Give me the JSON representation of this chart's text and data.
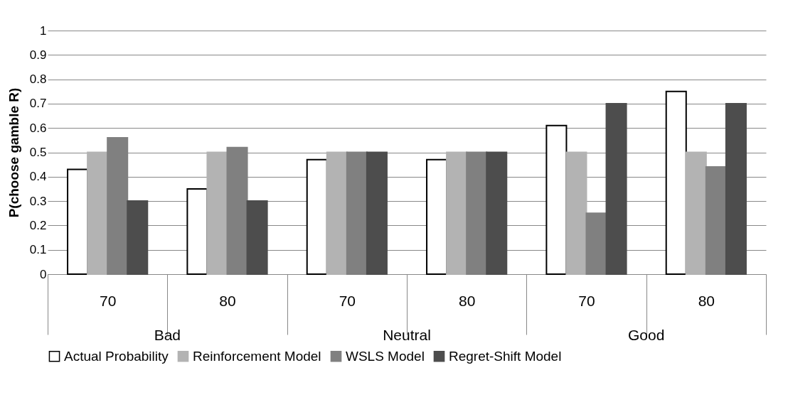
{
  "chart_data": {
    "type": "bar",
    "ylabel": "P(choose gamble R)",
    "categories": [
      "70",
      "80",
      "70",
      "80",
      "70",
      "80"
    ],
    "annotations": [
      "Bad",
      "Neutral",
      "Good"
    ],
    "series": [
      {
        "name": "Actual Probability",
        "color": "#ffffff",
        "values": [
          0.43,
          0.35,
          0.47,
          0.47,
          0.61,
          0.75
        ]
      },
      {
        "name": "Reinforcement Model",
        "color": "#b3b3b3",
        "values": [
          0.5,
          0.5,
          0.5,
          0.5,
          0.5,
          0.5
        ]
      },
      {
        "name": "WSLS Model",
        "color": "#808080",
        "values": [
          0.56,
          0.52,
          0.5,
          0.5,
          0.25,
          0.44
        ]
      },
      {
        "name": "Regret-Shift Model",
        "color": "#4d4d4d",
        "values": [
          0.3,
          0.3,
          0.5,
          0.5,
          0.7,
          0.7
        ]
      }
    ],
    "ylim": [
      0,
      1
    ],
    "yticks": [
      0,
      0.1,
      0.2,
      0.3,
      0.4,
      0.5,
      0.6,
      0.7,
      0.8,
      0.9,
      1
    ],
    "grid": "y",
    "legend": "bottom"
  }
}
